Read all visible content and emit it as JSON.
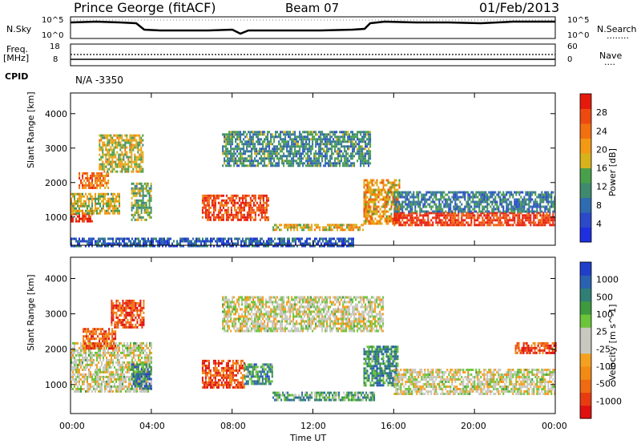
{
  "header": {
    "station": "Prince George (fitACF)",
    "beam": "Beam 07",
    "date": "01/Feb/2013"
  },
  "strip_labels": {
    "nsky": "N.Sky",
    "nsearch": "N.Search",
    "freq": "Freq.",
    "freq_unit": "[MHz]",
    "nave": "Nave",
    "cpid": "CPID",
    "cpid_value": "N/A -3350",
    "dots_nsearch": "........",
    "dots_nave": "...."
  },
  "strip_ticks": {
    "nsky_left": [
      "10^5",
      "10^0"
    ],
    "nsearch_right": [
      "10^5",
      "10^0"
    ],
    "freq_left": [
      "18",
      "8"
    ],
    "nave_right": [
      "60",
      "0"
    ]
  },
  "chart_data": [
    {
      "type": "heatmap",
      "panel": "power",
      "ylabel": "Slant Range [km]",
      "xlabel": "Time UT",
      "x_ticks": [
        "00:00",
        "04:00",
        "08:00",
        "12:00",
        "16:00",
        "20:00",
        "00:00"
      ],
      "xlim_hours": [
        0,
        24
      ],
      "y_ticks": [
        1000,
        2000,
        3000,
        4000
      ],
      "ylim": [
        180,
        4600
      ],
      "colorbar": {
        "label": "Power [dB]",
        "ticks": [
          "4",
          "8",
          "12",
          "16",
          "20",
          "24",
          "28"
        ],
        "colors": [
          "#1f2fe0",
          "#2b49c8",
          "#2f6bb0",
          "#3f8a6e",
          "#4aa04a",
          "#d8b21c",
          "#f39a14",
          "#f27010",
          "#ee4a10",
          "#e61a0c"
        ]
      },
      "regions": [
        {
          "t0": 0.0,
          "t1": 1.1,
          "r0": 850,
          "r1": 1120,
          "level": 0.95
        },
        {
          "t0": 0.0,
          "t1": 2.4,
          "r0": 1120,
          "r1": 1700,
          "level": 0.55
        },
        {
          "t0": 0.4,
          "t1": 1.9,
          "r0": 1850,
          "r1": 2300,
          "level": 0.75
        },
        {
          "t0": 1.4,
          "t1": 3.6,
          "r0": 2300,
          "r1": 3400,
          "level": 0.55
        },
        {
          "t0": 3.0,
          "t1": 4.0,
          "r0": 900,
          "r1": 2000,
          "level": 0.45
        },
        {
          "t0": 6.5,
          "t1": 9.8,
          "r0": 950,
          "r1": 1650,
          "level": 0.85
        },
        {
          "t0": 7.5,
          "t1": 14.8,
          "r0": 2500,
          "r1": 3500,
          "level": 0.35
        },
        {
          "t0": 10.0,
          "t1": 14.5,
          "r0": 600,
          "r1": 800,
          "level": 0.6
        },
        {
          "t0": 14.5,
          "t1": 16.3,
          "r0": 800,
          "r1": 2100,
          "level": 0.65
        },
        {
          "t0": 16.0,
          "t1": 24.0,
          "r0": 750,
          "r1": 1150,
          "level": 0.92
        },
        {
          "t0": 16.0,
          "t1": 24.0,
          "r0": 1150,
          "r1": 1750,
          "level": 0.3
        },
        {
          "t0": 0.0,
          "t1": 14.0,
          "r0": 180,
          "r1": 400,
          "level": 0.2
        }
      ]
    },
    {
      "type": "heatmap",
      "panel": "velocity",
      "ylabel": "Slant Range [km]",
      "xlabel": "Time UT",
      "x_ticks": [
        "00:00",
        "04:00",
        "08:00",
        "12:00",
        "16:00",
        "20:00",
        "00:00"
      ],
      "xlim_hours": [
        0,
        24
      ],
      "y_ticks": [
        1000,
        2000,
        3000,
        4000
      ],
      "ylim": [
        180,
        4600
      ],
      "colorbar": {
        "label": "Velocity [m s^-1]",
        "ticks": [
          "1000",
          "500",
          "100",
          "25",
          "-25",
          "-100",
          "-500",
          "-1000"
        ],
        "colors": [
          "#1f3fc8",
          "#2a62b0",
          "#2f7f74",
          "#3f9a3f",
          "#6cc43a",
          "#c8c8c0",
          "#c8c8c0",
          "#f6a020",
          "#f28a14",
          "#ef6a12",
          "#e83c10",
          "#e01010"
        ]
      },
      "regions": [
        {
          "t0": 0.0,
          "t1": 4.0,
          "r0": 800,
          "r1": 2200,
          "level": 0.5
        },
        {
          "t0": 0.6,
          "t1": 2.2,
          "r0": 2000,
          "r1": 2600,
          "level": 0.8
        },
        {
          "t0": 2.0,
          "t1": 3.6,
          "r0": 2600,
          "r1": 3400,
          "level": 0.85
        },
        {
          "t0": 3.0,
          "t1": 4.0,
          "r0": 900,
          "r1": 1600,
          "level": 0.2
        },
        {
          "t0": 6.5,
          "t1": 8.6,
          "r0": 950,
          "r1": 1700,
          "level": 0.85
        },
        {
          "t0": 8.6,
          "t1": 10.0,
          "r0": 1000,
          "r1": 1600,
          "level": 0.25
        },
        {
          "t0": 7.5,
          "t1": 15.5,
          "r0": 2500,
          "r1": 3500,
          "level": 0.5
        },
        {
          "t0": 10.0,
          "t1": 15.0,
          "r0": 550,
          "r1": 800,
          "level": 0.3
        },
        {
          "t0": 14.5,
          "t1": 16.2,
          "r0": 1000,
          "r1": 2100,
          "level": 0.25
        },
        {
          "t0": 16.0,
          "t1": 24.0,
          "r0": 750,
          "r1": 1450,
          "level": 0.5
        },
        {
          "t0": 22.0,
          "t1": 24.0,
          "r0": 1900,
          "r1": 2200,
          "level": 0.85
        }
      ]
    }
  ]
}
